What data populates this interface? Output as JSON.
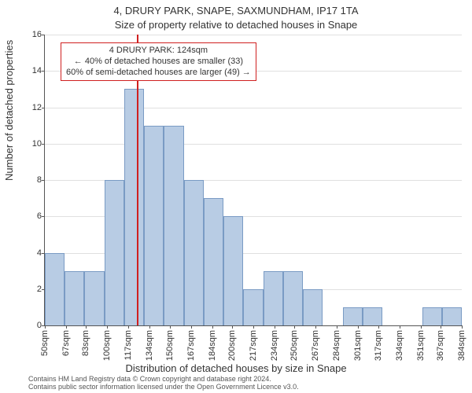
{
  "title": "4, DRURY PARK, SNAPE, SAXMUNDHAM, IP17 1TA",
  "subtitle": "Size of property relative to detached houses in Snape",
  "ylabel": "Number of detached properties",
  "xlabel": "Distribution of detached houses by size in Snape",
  "footer1": "Contains HM Land Registry data © Crown copyright and database right 2024.",
  "footer2": "Contains public sector information licensed under the Open Government Licence v3.0.",
  "chart": {
    "type": "histogram",
    "ylim": [
      0,
      16
    ],
    "ytick_step": 2,
    "background_color": "#ffffff",
    "grid_color": "#e0e0e0",
    "axis_color": "#555555",
    "bar_color": "#b8cce4",
    "bar_border": "#7a9bc4",
    "marker_color": "#d02020",
    "marker_x": 124,
    "xticks": [
      50,
      67,
      83,
      100,
      117,
      134,
      150,
      167,
      184,
      200,
      217,
      234,
      250,
      267,
      284,
      301,
      317,
      334,
      351,
      367,
      384
    ],
    "xtick_suffix": "sqm",
    "values": [
      4,
      3,
      3,
      8,
      13,
      11,
      11,
      8,
      7,
      6,
      2,
      3,
      3,
      2,
      0,
      1,
      1,
      0,
      0,
      1,
      1
    ],
    "tick_fontsize": 11,
    "label_fontsize": 13,
    "title_fontsize": 13
  },
  "annotation": {
    "line1": "4 DRURY PARK: 124sqm",
    "line2": "← 40% of detached houses are smaller (33)",
    "line3": "60% of semi-detached houses are larger (49) →",
    "border_color": "#d02020"
  }
}
